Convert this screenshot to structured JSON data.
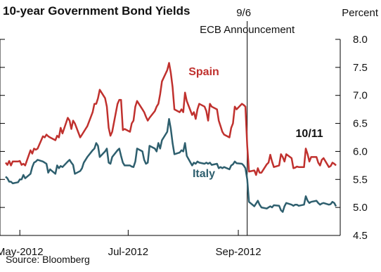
{
  "chart_data": {
    "type": "line",
    "title": "10-year Government Bond Yields",
    "units": "Percent",
    "source": "Source: Bloomberg",
    "ylim": [
      4.5,
      8.0
    ],
    "xlim": [
      "2012-04-23",
      "2012-10-26"
    ],
    "y_ticks": [
      "8.0",
      "7.5",
      "7.0",
      "6.5",
      "6.0",
      "5.5",
      "5.0",
      "4.5"
    ],
    "y_tick_values": [
      8.0,
      7.5,
      7.0,
      6.5,
      6.0,
      5.5,
      5.0,
      4.5
    ],
    "x_ticks": [
      "May-2012",
      "Jul-2012",
      "Sep-2012"
    ],
    "x_tick_values": [
      "2012-05-01",
      "2012-07-01",
      "2012-09-01"
    ],
    "vline": {
      "x": "2012-09-06",
      "label_date": "9/6",
      "label_event": "ECB Announcement"
    },
    "annotation": {
      "text": "10/11",
      "x": "2012-10-11"
    },
    "series": [
      {
        "name": "Spain",
        "color": "#c0312e",
        "points": [
          [
            "2012-04-23",
            5.8
          ],
          [
            "2012-04-24",
            5.76
          ],
          [
            "2012-04-25",
            5.83
          ],
          [
            "2012-04-26",
            5.75
          ],
          [
            "2012-04-27",
            5.82
          ],
          [
            "2012-04-30",
            5.82
          ],
          [
            "2012-05-01",
            5.83
          ],
          [
            "2012-05-02",
            5.76
          ],
          [
            "2012-05-03",
            5.78
          ],
          [
            "2012-05-04",
            5.75
          ],
          [
            "2012-05-07",
            6.02
          ],
          [
            "2012-05-08",
            5.96
          ],
          [
            "2012-05-09",
            6.05
          ],
          [
            "2012-05-10",
            6.03
          ],
          [
            "2012-05-11",
            6.05
          ],
          [
            "2012-05-14",
            6.27
          ],
          [
            "2012-05-15",
            6.25
          ],
          [
            "2012-05-16",
            6.3
          ],
          [
            "2012-05-17",
            6.27
          ],
          [
            "2012-05-18",
            6.25
          ],
          [
            "2012-05-21",
            6.2
          ],
          [
            "2012-05-22",
            6.28
          ],
          [
            "2012-05-23",
            6.25
          ],
          [
            "2012-05-24",
            6.42
          ],
          [
            "2012-05-25",
            6.32
          ],
          [
            "2012-05-28",
            6.6
          ],
          [
            "2012-05-29",
            6.55
          ],
          [
            "2012-05-30",
            6.4
          ],
          [
            "2012-05-31",
            6.55
          ],
          [
            "2012-06-01",
            6.5
          ],
          [
            "2012-06-04",
            6.25
          ],
          [
            "2012-06-05",
            6.3
          ],
          [
            "2012-06-06",
            6.35
          ],
          [
            "2012-06-07",
            6.4
          ],
          [
            "2012-06-08",
            6.45
          ],
          [
            "2012-06-11",
            6.7
          ],
          [
            "2012-06-12",
            6.85
          ],
          [
            "2012-06-13",
            6.85
          ],
          [
            "2012-06-14",
            6.95
          ],
          [
            "2012-06-15",
            7.1
          ],
          [
            "2012-06-18",
            6.95
          ],
          [
            "2012-06-19",
            6.8
          ],
          [
            "2012-06-20",
            6.42
          ],
          [
            "2012-06-21",
            6.28
          ],
          [
            "2012-06-22",
            6.35
          ],
          [
            "2012-06-25",
            6.85
          ],
          [
            "2012-06-26",
            6.92
          ],
          [
            "2012-06-27",
            6.92
          ],
          [
            "2012-06-28",
            6.38
          ],
          [
            "2012-06-29",
            6.4
          ],
          [
            "2012-07-02",
            6.35
          ],
          [
            "2012-07-03",
            6.5
          ],
          [
            "2012-07-04",
            6.55
          ],
          [
            "2012-07-05",
            6.8
          ],
          [
            "2012-07-06",
            6.9
          ],
          [
            "2012-07-09",
            6.75
          ],
          [
            "2012-07-10",
            6.7
          ],
          [
            "2012-07-11",
            6.62
          ],
          [
            "2012-07-12",
            6.55
          ],
          [
            "2012-07-13",
            6.6
          ],
          [
            "2012-07-16",
            6.72
          ],
          [
            "2012-07-17",
            6.8
          ],
          [
            "2012-07-18",
            6.85
          ],
          [
            "2012-07-19",
            7.02
          ],
          [
            "2012-07-20",
            7.25
          ],
          [
            "2012-07-23",
            7.45
          ],
          [
            "2012-07-24",
            7.58
          ],
          [
            "2012-07-25",
            7.4
          ],
          [
            "2012-07-26",
            7.15
          ],
          [
            "2012-07-27",
            6.75
          ],
          [
            "2012-07-30",
            6.7
          ],
          [
            "2012-07-31",
            6.75
          ],
          [
            "2012-08-01",
            6.7
          ],
          [
            "2012-08-02",
            7.05
          ],
          [
            "2012-08-03",
            6.9
          ],
          [
            "2012-08-06",
            6.65
          ],
          [
            "2012-08-07",
            6.7
          ],
          [
            "2012-08-08",
            6.58
          ],
          [
            "2012-08-09",
            6.75
          ],
          [
            "2012-08-10",
            6.85
          ],
          [
            "2012-08-13",
            6.8
          ],
          [
            "2012-08-14",
            6.72
          ],
          [
            "2012-08-15",
            6.55
          ],
          [
            "2012-08-16",
            6.85
          ],
          [
            "2012-08-17",
            6.8
          ],
          [
            "2012-08-20",
            6.75
          ],
          [
            "2012-08-21",
            6.55
          ],
          [
            "2012-08-22",
            6.45
          ],
          [
            "2012-08-23",
            6.35
          ],
          [
            "2012-08-24",
            6.3
          ],
          [
            "2012-08-27",
            6.25
          ],
          [
            "2012-08-28",
            6.42
          ],
          [
            "2012-08-29",
            6.5
          ],
          [
            "2012-08-30",
            6.8
          ],
          [
            "2012-08-31",
            6.75
          ],
          [
            "2012-09-03",
            6.85
          ],
          [
            "2012-09-04",
            6.83
          ],
          [
            "2012-09-05",
            6.8
          ],
          [
            "2012-09-06",
            6.1
          ],
          [
            "2012-09-07",
            5.64
          ],
          [
            "2012-09-10",
            5.66
          ],
          [
            "2012-09-11",
            5.58
          ],
          [
            "2012-09-12",
            5.7
          ],
          [
            "2012-09-13",
            5.62
          ],
          [
            "2012-09-14",
            5.62
          ],
          [
            "2012-09-17",
            5.77
          ],
          [
            "2012-09-18",
            5.8
          ],
          [
            "2012-09-19",
            5.94
          ],
          [
            "2012-09-20",
            5.82
          ],
          [
            "2012-09-21",
            5.72
          ],
          [
            "2012-09-24",
            5.75
          ],
          [
            "2012-09-25",
            5.95
          ],
          [
            "2012-09-26",
            5.9
          ],
          [
            "2012-09-27",
            5.82
          ],
          [
            "2012-09-28",
            5.95
          ],
          [
            "2012-10-01",
            5.88
          ],
          [
            "2012-10-02",
            5.7
          ],
          [
            "2012-10-03",
            5.71
          ],
          [
            "2012-10-04",
            5.73
          ],
          [
            "2012-10-05",
            5.72
          ],
          [
            "2012-10-08",
            5.72
          ],
          [
            "2012-10-09",
            6.05
          ],
          [
            "2012-10-10",
            5.95
          ],
          [
            "2012-10-11",
            5.82
          ],
          [
            "2012-10-12",
            5.9
          ],
          [
            "2012-10-15",
            5.9
          ],
          [
            "2012-10-16",
            5.8
          ],
          [
            "2012-10-17",
            5.75
          ],
          [
            "2012-10-18",
            5.85
          ],
          [
            "2012-10-19",
            5.88
          ],
          [
            "2012-10-22",
            5.72
          ],
          [
            "2012-10-23",
            5.74
          ],
          [
            "2012-10-24",
            5.8
          ],
          [
            "2012-10-25",
            5.78
          ],
          [
            "2012-10-26",
            5.75
          ]
        ]
      },
      {
        "name": "Italy",
        "color": "#2e5f6e",
        "points": [
          [
            "2012-04-23",
            5.55
          ],
          [
            "2012-04-24",
            5.52
          ],
          [
            "2012-04-25",
            5.46
          ],
          [
            "2012-04-26",
            5.46
          ],
          [
            "2012-04-27",
            5.43
          ],
          [
            "2012-04-30",
            5.45
          ],
          [
            "2012-05-01",
            5.5
          ],
          [
            "2012-05-02",
            5.5
          ],
          [
            "2012-05-03",
            5.58
          ],
          [
            "2012-05-04",
            5.52
          ],
          [
            "2012-05-07",
            5.6
          ],
          [
            "2012-05-08",
            5.72
          ],
          [
            "2012-05-09",
            5.8
          ],
          [
            "2012-05-10",
            5.82
          ],
          [
            "2012-05-11",
            5.85
          ],
          [
            "2012-05-14",
            5.82
          ],
          [
            "2012-05-15",
            5.8
          ],
          [
            "2012-05-16",
            5.78
          ],
          [
            "2012-05-17",
            5.62
          ],
          [
            "2012-05-18",
            5.68
          ],
          [
            "2012-05-21",
            5.6
          ],
          [
            "2012-05-22",
            5.75
          ],
          [
            "2012-05-23",
            5.7
          ],
          [
            "2012-05-24",
            5.74
          ],
          [
            "2012-05-25",
            5.72
          ],
          [
            "2012-05-28",
            5.82
          ],
          [
            "2012-05-29",
            5.85
          ],
          [
            "2012-05-30",
            5.8
          ],
          [
            "2012-05-31",
            5.76
          ],
          [
            "2012-06-01",
            5.6
          ],
          [
            "2012-06-04",
            5.65
          ],
          [
            "2012-06-05",
            5.7
          ],
          [
            "2012-06-06",
            5.8
          ],
          [
            "2012-06-07",
            5.85
          ],
          [
            "2012-06-08",
            5.9
          ],
          [
            "2012-06-11",
            6.02
          ],
          [
            "2012-06-12",
            6.05
          ],
          [
            "2012-06-13",
            6.15
          ],
          [
            "2012-06-14",
            6.1
          ],
          [
            "2012-06-15",
            5.9
          ],
          [
            "2012-06-18",
            6.0
          ],
          [
            "2012-06-19",
            6.05
          ],
          [
            "2012-06-20",
            5.8
          ],
          [
            "2012-06-21",
            5.78
          ],
          [
            "2012-06-22",
            5.9
          ],
          [
            "2012-06-25",
            6.02
          ],
          [
            "2012-06-26",
            6.05
          ],
          [
            "2012-06-27",
            5.92
          ],
          [
            "2012-06-28",
            5.8
          ],
          [
            "2012-06-29",
            5.75
          ],
          [
            "2012-07-02",
            5.75
          ],
          [
            "2012-07-03",
            5.73
          ],
          [
            "2012-07-04",
            5.72
          ],
          [
            "2012-07-05",
            5.82
          ],
          [
            "2012-07-06",
            6.05
          ],
          [
            "2012-07-09",
            6.0
          ],
          [
            "2012-07-10",
            5.85
          ],
          [
            "2012-07-11",
            5.78
          ],
          [
            "2012-07-12",
            5.8
          ],
          [
            "2012-07-13",
            6.1
          ],
          [
            "2012-07-16",
            6.05
          ],
          [
            "2012-07-17",
            6.0
          ],
          [
            "2012-07-18",
            6.15
          ],
          [
            "2012-07-19",
            6.05
          ],
          [
            "2012-07-20",
            6.2
          ],
          [
            "2012-07-23",
            6.35
          ],
          [
            "2012-07-24",
            6.58
          ],
          [
            "2012-07-25",
            6.4
          ],
          [
            "2012-07-26",
            6.15
          ],
          [
            "2012-07-27",
            5.95
          ],
          [
            "2012-07-30",
            5.98
          ],
          [
            "2012-07-31",
            6.02
          ],
          [
            "2012-08-01",
            6.0
          ],
          [
            "2012-08-02",
            6.15
          ],
          [
            "2012-08-03",
            5.92
          ],
          [
            "2012-08-06",
            5.75
          ],
          [
            "2012-08-07",
            5.8
          ],
          [
            "2012-08-08",
            5.78
          ],
          [
            "2012-08-09",
            5.82
          ],
          [
            "2012-08-10",
            5.8
          ],
          [
            "2012-08-13",
            5.78
          ],
          [
            "2012-08-14",
            5.8
          ],
          [
            "2012-08-15",
            5.78
          ],
          [
            "2012-08-16",
            5.8
          ],
          [
            "2012-08-17",
            5.76
          ],
          [
            "2012-08-20",
            5.78
          ],
          [
            "2012-08-21",
            5.7
          ],
          [
            "2012-08-22",
            5.72
          ],
          [
            "2012-08-23",
            5.7
          ],
          [
            "2012-08-24",
            5.72
          ],
          [
            "2012-08-27",
            5.68
          ],
          [
            "2012-08-28",
            5.75
          ],
          [
            "2012-08-29",
            5.77
          ],
          [
            "2012-08-30",
            5.82
          ],
          [
            "2012-08-31",
            5.79
          ],
          [
            "2012-09-03",
            5.78
          ],
          [
            "2012-09-04",
            5.75
          ],
          [
            "2012-09-05",
            5.7
          ],
          [
            "2012-09-06",
            5.5
          ],
          [
            "2012-09-07",
            5.1
          ],
          [
            "2012-09-10",
            5.02
          ],
          [
            "2012-09-11",
            5.07
          ],
          [
            "2012-09-12",
            5.12
          ],
          [
            "2012-09-13",
            5.05
          ],
          [
            "2012-09-14",
            5.0
          ],
          [
            "2012-09-17",
            4.98
          ],
          [
            "2012-09-18",
            5.0
          ],
          [
            "2012-09-19",
            5.02
          ],
          [
            "2012-09-20",
            5.0
          ],
          [
            "2012-09-21",
            5.04
          ],
          [
            "2012-09-24",
            5.03
          ],
          [
            "2012-09-25",
            4.95
          ],
          [
            "2012-09-26",
            4.92
          ],
          [
            "2012-09-27",
            5.02
          ],
          [
            "2012-09-28",
            5.08
          ],
          [
            "2012-10-01",
            5.05
          ],
          [
            "2012-10-02",
            5.03
          ],
          [
            "2012-10-03",
            5.05
          ],
          [
            "2012-10-04",
            5.05
          ],
          [
            "2012-10-05",
            5.03
          ],
          [
            "2012-10-08",
            5.05
          ],
          [
            "2012-10-09",
            5.2
          ],
          [
            "2012-10-10",
            5.12
          ],
          [
            "2012-10-11",
            5.08
          ],
          [
            "2012-10-12",
            5.1
          ],
          [
            "2012-10-15",
            5.12
          ],
          [
            "2012-10-16",
            5.08
          ],
          [
            "2012-10-17",
            5.05
          ],
          [
            "2012-10-18",
            5.07
          ],
          [
            "2012-10-19",
            5.08
          ],
          [
            "2012-10-22",
            5.05
          ],
          [
            "2012-10-23",
            5.06
          ],
          [
            "2012-10-24",
            5.1
          ],
          [
            "2012-10-25",
            5.08
          ],
          [
            "2012-10-26",
            5.02
          ]
        ]
      }
    ]
  }
}
